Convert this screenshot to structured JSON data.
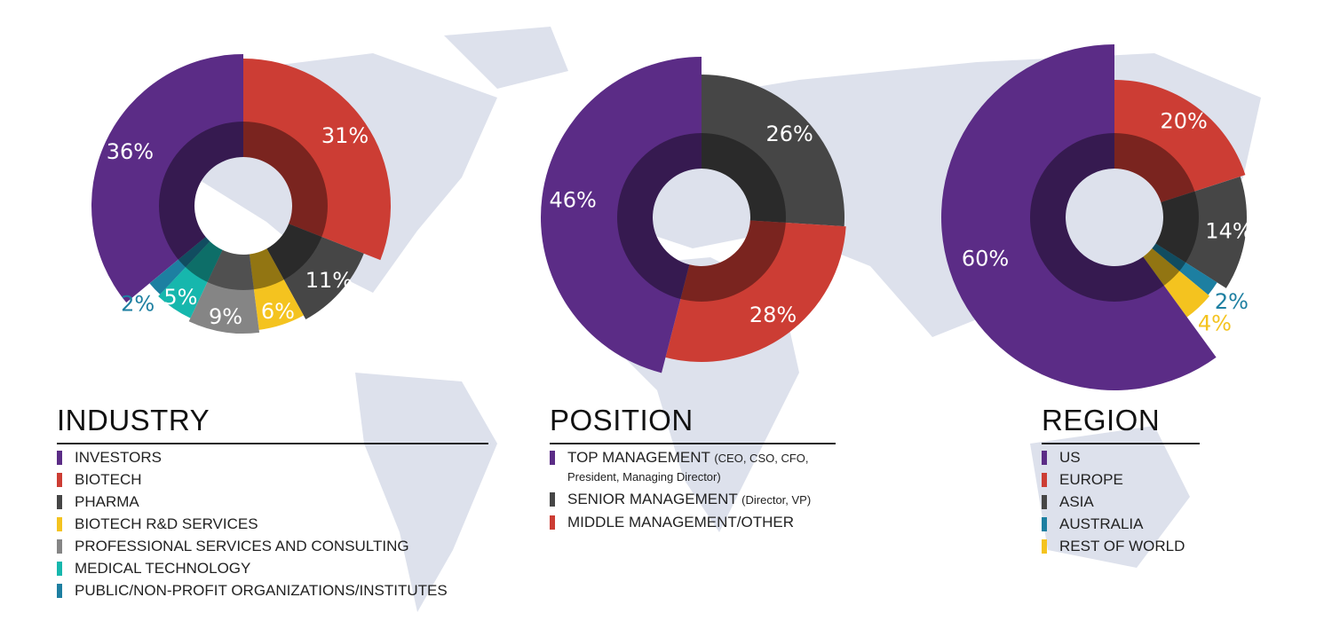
{
  "chart_data": [
    {
      "type": "pie",
      "title": "INDUSTRY",
      "categories": [
        "INVESTORS",
        "BIOTECH",
        "PHARMA",
        "BIOTECH R&D SERVICES",
        "PROFESSIONAL SERVICES AND CONSULTING",
        "MEDICAL TECHNOLOGY",
        "PUBLIC/NON-PROFIT ORGANIZATIONS/INSTITUTES"
      ],
      "values": [
        36,
        31,
        11,
        6,
        9,
        5,
        2
      ],
      "value_labels": [
        "36%",
        "31%",
        "11%",
        "6%",
        "9%",
        "5%",
        "2%"
      ],
      "colors": [
        "#5b2c86",
        "#cc3d34",
        "#464646",
        "#f4c31f",
        "#858585",
        "#16b7ad",
        "#1d7fa1"
      ]
    },
    {
      "type": "pie",
      "title": "POSITION",
      "categories": [
        "TOP MANAGEMENT",
        "SENIOR MANAGEMENT",
        "MIDDLE MANAGEMENT/OTHER"
      ],
      "category_details": [
        "(CEO, CSO, CFO, President, Managing Director)",
        "(Director, VP)",
        null
      ],
      "values": [
        46,
        26,
        28
      ],
      "value_labels": [
        "46%",
        "26%",
        "28%"
      ],
      "colors": [
        "#5b2c86",
        "#464646",
        "#cc3d34"
      ]
    },
    {
      "type": "pie",
      "title": "REGION",
      "categories": [
        "US",
        "EUROPE",
        "ASIA",
        "AUSTRALIA",
        "REST OF WORLD"
      ],
      "values": [
        60,
        20,
        14,
        2,
        4
      ],
      "value_labels": [
        "60%",
        "20%",
        "14%",
        "2%",
        "4%"
      ],
      "colors": [
        "#5b2c86",
        "#cc3d34",
        "#464646",
        "#1d7fa1",
        "#f4c31f"
      ]
    }
  ]
}
